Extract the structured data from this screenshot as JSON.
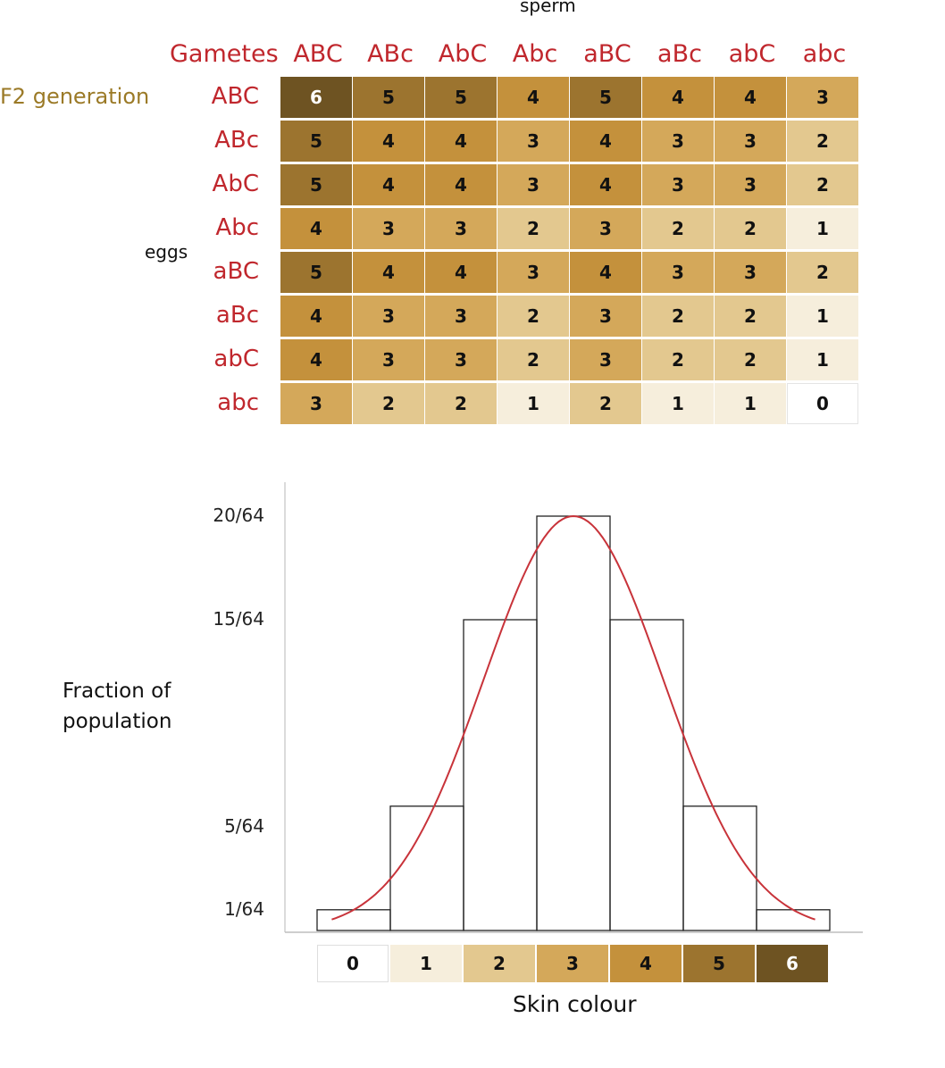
{
  "punnett": {
    "sperm_label": "sperm",
    "eggs_label": "eggs",
    "gametes_label": "Gametes",
    "generation_label": "F2 generation",
    "col_headers": [
      "ABC",
      "ABc",
      "AbC",
      "Abc",
      "aBC",
      "aBc",
      "abC",
      "abc"
    ],
    "row_headers": [
      "ABC",
      "ABc",
      "AbC",
      "Abc",
      "aBC",
      "aBc",
      "abC",
      "abc"
    ],
    "cells": [
      [
        6,
        5,
        5,
        4,
        5,
        4,
        4,
        3
      ],
      [
        5,
        4,
        4,
        3,
        4,
        3,
        3,
        2
      ],
      [
        5,
        4,
        4,
        3,
        4,
        3,
        3,
        2
      ],
      [
        4,
        3,
        3,
        2,
        3,
        2,
        2,
        1
      ],
      [
        5,
        4,
        4,
        3,
        4,
        3,
        3,
        2
      ],
      [
        4,
        3,
        3,
        2,
        3,
        2,
        2,
        1
      ],
      [
        4,
        3,
        3,
        2,
        3,
        2,
        2,
        1
      ],
      [
        3,
        2,
        2,
        1,
        2,
        1,
        1,
        0
      ]
    ],
    "shade_colors": [
      "#ffffff",
      "#f6eedc",
      "#e3c88f",
      "#d4a85a",
      "#c4913c",
      "#9c742f",
      "#6e5322"
    ]
  },
  "chart_data": {
    "type": "bar",
    "categories": [
      "0",
      "1",
      "2",
      "3",
      "4",
      "5",
      "6"
    ],
    "values": [
      1,
      6,
      15,
      20,
      15,
      6,
      1
    ],
    "value_unit": "sixty-fourths",
    "ytick_labels": [
      "1/64",
      "5/64",
      "15/64",
      "20/64"
    ],
    "ytick_values": [
      1,
      5,
      15,
      20
    ],
    "ylabel_lines": [
      "Fraction of",
      "population"
    ],
    "xlabel": "Skin colour",
    "curve_color": "#c8333a",
    "ylim": [
      0,
      21
    ],
    "grid": false
  }
}
